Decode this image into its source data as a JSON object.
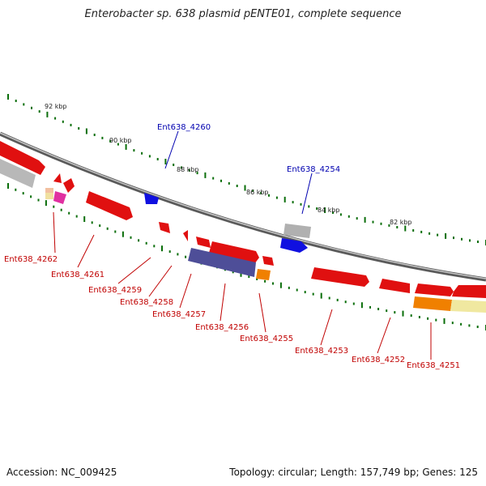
{
  "title": "Enterobacter sp. 638 plasmid pENTE01, complete sequence",
  "accession_text": "Accession: NC_009425",
  "meta_text": "Topology: circular; Length: 157,749 bp; Genes: 125",
  "colors": {
    "forward_gene": "#e01010",
    "reverse_gene": "#1010e0",
    "grey_feature": "#b0b0b0",
    "purple_feature": "#5050a0",
    "orange_feature": "#f08000",
    "pale_feature": "#f0e8a0",
    "tick_green": "#0a6e0a",
    "backbone": "#808080"
  },
  "kbp_ticks": [
    "92 kbp",
    "90 kbp",
    "88 kbp",
    "86 kbp",
    "84 kbp",
    "82 kbp"
  ],
  "gene_labels_top": [
    "Ent638_4260",
    "Ent638_4254"
  ],
  "gene_labels_bottom": [
    "Ent638_4262",
    "Ent638_4261",
    "Ent638_4259",
    "Ent638_4258",
    "Ent638_4257",
    "Ent638_4256",
    "Ent638_4255",
    "Ent638_4253",
    "Ent638_4252",
    "Ent638_4251"
  ]
}
